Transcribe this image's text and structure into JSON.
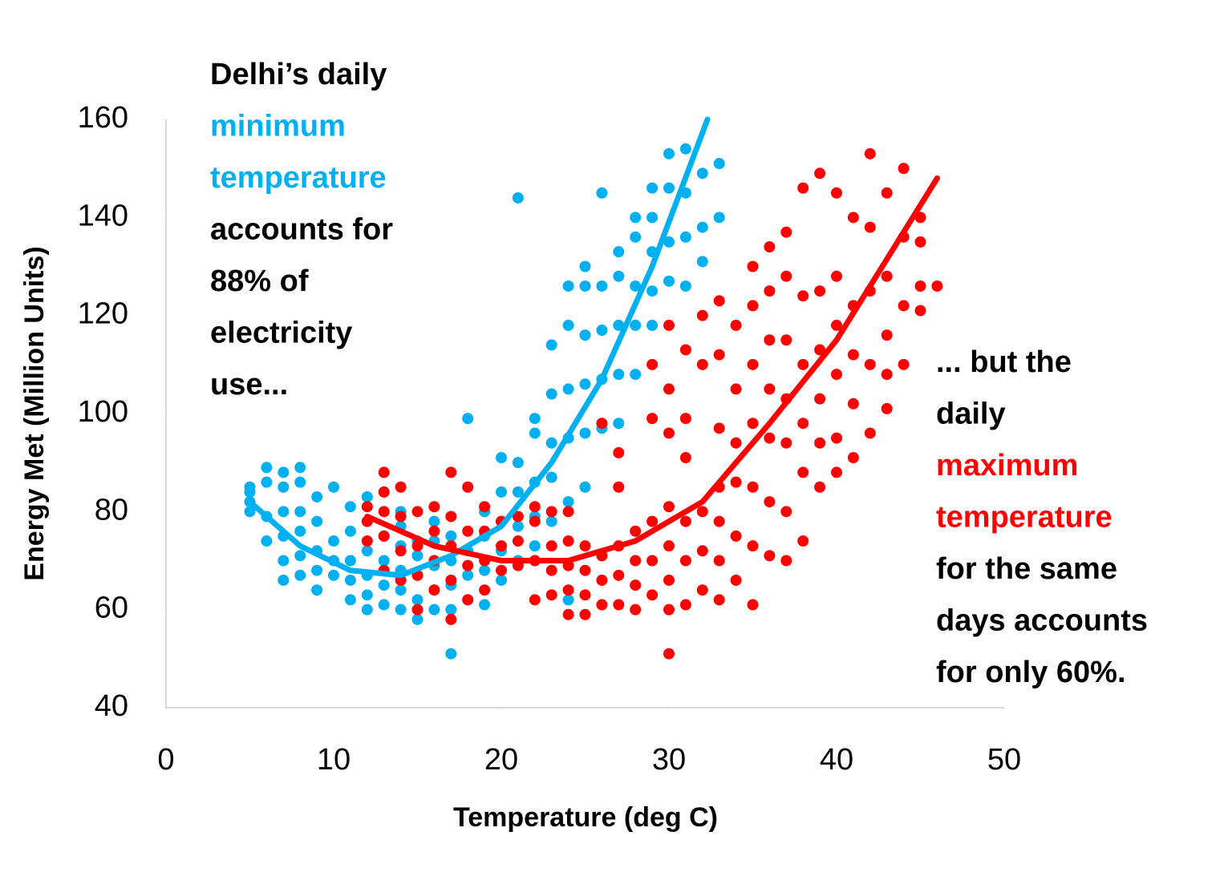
{
  "chart_data": {
    "type": "scatter",
    "xlabel": "Temperature (deg C)",
    "ylabel": "Energy Met (Million Units)",
    "xlim": [
      0,
      50
    ],
    "xticks": [
      0,
      10,
      20,
      30,
      40,
      50
    ],
    "ylim": [
      40,
      160
    ],
    "yticks": [
      40,
      60,
      80,
      100,
      120,
      140,
      160
    ],
    "grid": false,
    "series": [
      {
        "color": "#00b0f0",
        "x": [
          5,
          5,
          5,
          5,
          6,
          6,
          6,
          6,
          7,
          7,
          7,
          7,
          7,
          7,
          8,
          8,
          8,
          8,
          8,
          8,
          9,
          9,
          9,
          9,
          9,
          10,
          10,
          10,
          10,
          11,
          11,
          11,
          11,
          11,
          12,
          12,
          12,
          12,
          12,
          12,
          13,
          13,
          13,
          13,
          14,
          14,
          14,
          14,
          14,
          14,
          15,
          15,
          15,
          15,
          15,
          16,
          16,
          16,
          16,
          16,
          17,
          17,
          17,
          17,
          17,
          18,
          18,
          18,
          18,
          19,
          19,
          19,
          19,
          20,
          20,
          20,
          20,
          20,
          21,
          21,
          21,
          21,
          21,
          22,
          22,
          22,
          22,
          22,
          23,
          23,
          23,
          23,
          23,
          24,
          24,
          24,
          24,
          24,
          24,
          25,
          25,
          25,
          25,
          25,
          25,
          26,
          26,
          26,
          26,
          26,
          27,
          27,
          27,
          27,
          27,
          28,
          28,
          28,
          28,
          28,
          29,
          29,
          29,
          29,
          29,
          30,
          30,
          30,
          30,
          31,
          31,
          31,
          31,
          32,
          32,
          32,
          33,
          33
        ],
        "values": [
          80,
          82,
          84,
          85,
          74,
          79,
          86,
          89,
          66,
          70,
          75,
          80,
          85,
          88,
          67,
          71,
          76,
          80,
          86,
          89,
          64,
          68,
          72,
          78,
          83,
          67,
          70,
          74,
          85,
          62,
          66,
          70,
          76,
          81,
          60,
          63,
          67,
          72,
          78,
          83,
          61,
          65,
          70,
          75,
          60,
          64,
          68,
          73,
          77,
          80,
          58,
          62,
          67,
          71,
          74,
          60,
          64,
          69,
          74,
          78,
          51,
          60,
          65,
          70,
          75,
          62,
          67,
          72,
          99,
          61,
          68,
          75,
          80,
          66,
          72,
          78,
          84,
          91,
          70,
          77,
          84,
          90,
          144,
          73,
          79,
          86,
          96,
          99,
          78,
          87,
          94,
          104,
          114,
          62,
          82,
          95,
          105,
          118,
          126,
          85,
          96,
          106,
          116,
          126,
          130,
          97,
          107,
          117,
          126,
          145,
          98,
          108,
          118,
          128,
          133,
          108,
          118,
          126,
          136,
          140,
          118,
          125,
          133,
          140,
          146,
          127,
          135,
          146,
          153,
          126,
          136,
          145,
          154,
          131,
          138,
          149,
          140,
          151
        ],
        "trendline": {
          "x": [
            5,
            8,
            11,
            14,
            17,
            20,
            23,
            26,
            29,
            32.3
          ],
          "values": [
            82,
            73,
            68,
            67,
            71,
            77,
            90,
            107,
            130,
            160
          ]
        }
      },
      {
        "color": "#ff0000",
        "x": [
          12,
          12,
          12,
          13,
          13,
          13,
          13,
          13,
          14,
          14,
          14,
          14,
          15,
          15,
          15,
          15,
          16,
          16,
          16,
          16,
          17,
          17,
          17,
          17,
          17,
          18,
          18,
          18,
          18,
          19,
          19,
          19,
          19,
          20,
          20,
          20,
          21,
          21,
          21,
          22,
          22,
          22,
          22,
          23,
          23,
          23,
          23,
          24,
          24,
          24,
          24,
          24,
          25,
          25,
          25,
          25,
          26,
          26,
          26,
          26,
          27,
          27,
          27,
          27,
          27,
          28,
          28,
          28,
          28,
          29,
          29,
          29,
          29,
          29,
          30,
          30,
          30,
          30,
          30,
          30,
          30,
          30,
          31,
          31,
          31,
          31,
          31,
          31,
          32,
          32,
          32,
          32,
          32,
          33,
          33,
          33,
          33,
          33,
          33,
          33,
          34,
          34,
          34,
          34,
          34,
          34,
          35,
          35,
          35,
          35,
          35,
          35,
          35,
          36,
          36,
          36,
          36,
          36,
          36,
          36,
          37,
          37,
          37,
          37,
          37,
          37,
          37,
          38,
          38,
          38,
          38,
          38,
          38,
          39,
          39,
          39,
          39,
          39,
          39,
          40,
          40,
          40,
          40,
          40,
          40,
          41,
          41,
          41,
          41,
          41,
          42,
          42,
          42,
          42,
          42,
          43,
          43,
          43,
          43,
          43,
          44,
          44,
          44,
          44,
          45,
          45,
          45,
          45,
          46
        ],
        "values": [
          74,
          78,
          81,
          68,
          75,
          80,
          84,
          88,
          66,
          72,
          79,
          85,
          60,
          67,
          73,
          80,
          64,
          70,
          76,
          81,
          58,
          66,
          73,
          79,
          88,
          62,
          69,
          76,
          85,
          64,
          70,
          76,
          81,
          68,
          73,
          78,
          69,
          74,
          79,
          62,
          70,
          78,
          81,
          63,
          68,
          73,
          80,
          59,
          64,
          69,
          74,
          80,
          59,
          63,
          68,
          73,
          61,
          66,
          71,
          98,
          61,
          67,
          73,
          85,
          92,
          60,
          65,
          70,
          76,
          63,
          70,
          78,
          99,
          110,
          51,
          60,
          66,
          73,
          81,
          96,
          105,
          118,
          61,
          70,
          78,
          91,
          99,
          113,
          64,
          72,
          80,
          110,
          120,
          62,
          70,
          78,
          85,
          97,
          112,
          123,
          66,
          75,
          86,
          94,
          105,
          118,
          61,
          73,
          85,
          98,
          110,
          122,
          130,
          71,
          82,
          95,
          105,
          115,
          125,
          134,
          70,
          80,
          94,
          103,
          115,
          128,
          137,
          74,
          88,
          98,
          110,
          124,
          146,
          85,
          94,
          103,
          113,
          125,
          149,
          88,
          95,
          108,
          118,
          128,
          145,
          91,
          102,
          112,
          122,
          140,
          96,
          110,
          125,
          138,
          153,
          101,
          108,
          116,
          128,
          145,
          110,
          122,
          136,
          150,
          121,
          126,
          135,
          140,
          126
        ],
        "trendline": {
          "x": [
            12,
            16,
            20,
            24,
            28,
            32,
            36,
            40,
            44,
            46
          ],
          "values": [
            79,
            73,
            70,
            70,
            74,
            82,
            98,
            115,
            137,
            148
          ]
        }
      }
    ],
    "annotations": [
      {
        "lines": [
          {
            "text": "Delhi’s daily",
            "color": "#000000"
          },
          {
            "text": "minimum",
            "color": "#00b0f0"
          },
          {
            "text": "temperature",
            "color": "#00b0f0"
          },
          {
            "text": "accounts for",
            "color": "#000000"
          },
          {
            "text": "88% of",
            "color": "#000000"
          },
          {
            "text": "electricity",
            "color": "#000000"
          },
          {
            "text": "use...",
            "color": "#000000"
          }
        ]
      },
      {
        "lines": [
          {
            "text": "... but the",
            "color": "#000000"
          },
          {
            "text": "daily",
            "color": "#000000"
          },
          {
            "text": "maximum",
            "color": "#ff0000"
          },
          {
            "text": "temperature",
            "color": "#ff0000"
          },
          {
            "text": "for the same",
            "color": "#000000"
          },
          {
            "text": "days accounts",
            "color": "#000000"
          },
          {
            "text": "for only 60%.",
            "color": "#000000"
          }
        ]
      }
    ]
  }
}
